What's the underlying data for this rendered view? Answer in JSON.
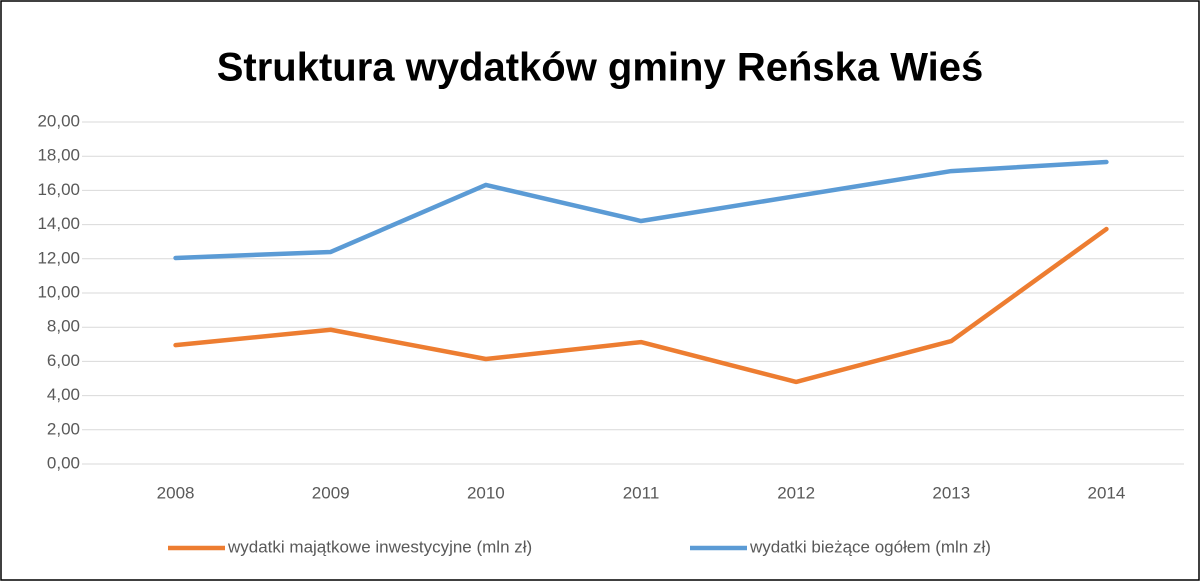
{
  "chart_data": {
    "type": "line",
    "title": "Struktura wydatków gminy Reńska Wieś",
    "categories": [
      "2008",
      "2009",
      "2010",
      "2011",
      "2012",
      "2013",
      "2014"
    ],
    "series": [
      {
        "name": "wydatki majątkowe inwestycyjne (mln zł)",
        "color": "#ed7d31",
        "values": [
          6.95,
          7.85,
          6.14,
          7.13,
          4.8,
          7.19,
          13.74
        ]
      },
      {
        "name": "wydatki bieżące ogółem (mln zł)",
        "color": "#5b9bd5",
        "values": [
          12.05,
          12.4,
          16.32,
          14.21,
          15.67,
          17.13,
          17.66
        ]
      }
    ],
    "ylim": [
      0,
      20
    ],
    "yticks": [
      {
        "value": 0,
        "label": "0,00"
      },
      {
        "value": 2,
        "label": "2,00"
      },
      {
        "value": 4,
        "label": "4,00"
      },
      {
        "value": 6,
        "label": "6,00"
      },
      {
        "value": 8,
        "label": "8,00"
      },
      {
        "value": 10,
        "label": "10,00"
      },
      {
        "value": 12,
        "label": "12,00"
      },
      {
        "value": 14,
        "label": "14,00"
      },
      {
        "value": 16,
        "label": "16,00"
      },
      {
        "value": 18,
        "label": "18,00"
      },
      {
        "value": 20,
        "label": "20,00"
      }
    ],
    "grid": true,
    "legend": "bottom"
  }
}
